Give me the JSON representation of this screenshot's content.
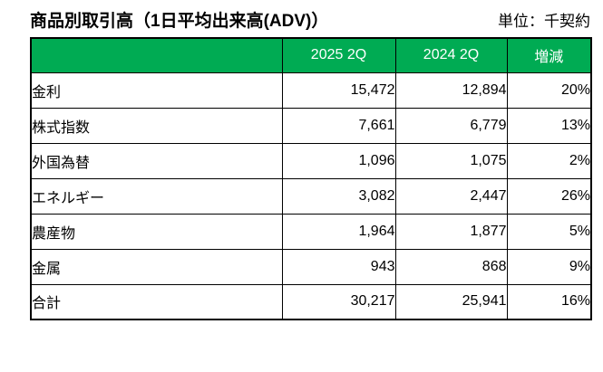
{
  "page": {
    "title": "商品別取引高（1日平均出来高(ADV)）",
    "unit_label": "単位：千契約"
  },
  "colors": {
    "header_bg": "#00AB53",
    "header_text": "#FFFFFF",
    "border": "#000000",
    "background": "#FFFFFF",
    "text": "#000000"
  },
  "table": {
    "columns": [
      "",
      "2025 2Q",
      "2024 2Q",
      "増減"
    ],
    "rows": [
      {
        "label": "金利",
        "adv_2025_2q": "15,472",
        "adv_2024_2q": "12,894",
        "change": "20%"
      },
      {
        "label": "株式指数",
        "adv_2025_2q": "7,661",
        "adv_2024_2q": "6,779",
        "change": "13%"
      },
      {
        "label": "外国為替",
        "adv_2025_2q": "1,096",
        "adv_2024_2q": "1,075",
        "change": "2%"
      },
      {
        "label": "エネルギー",
        "adv_2025_2q": "3,082",
        "adv_2024_2q": "2,447",
        "change": "26%"
      },
      {
        "label": "農産物",
        "adv_2025_2q": "1,964",
        "adv_2024_2q": "1,877",
        "change": "5%"
      },
      {
        "label": "金属",
        "adv_2025_2q": "943",
        "adv_2024_2q": "868",
        "change": "9%"
      },
      {
        "label": "合計",
        "adv_2025_2q": "30,217",
        "adv_2024_2q": "25,941",
        "change": "16%"
      }
    ]
  }
}
